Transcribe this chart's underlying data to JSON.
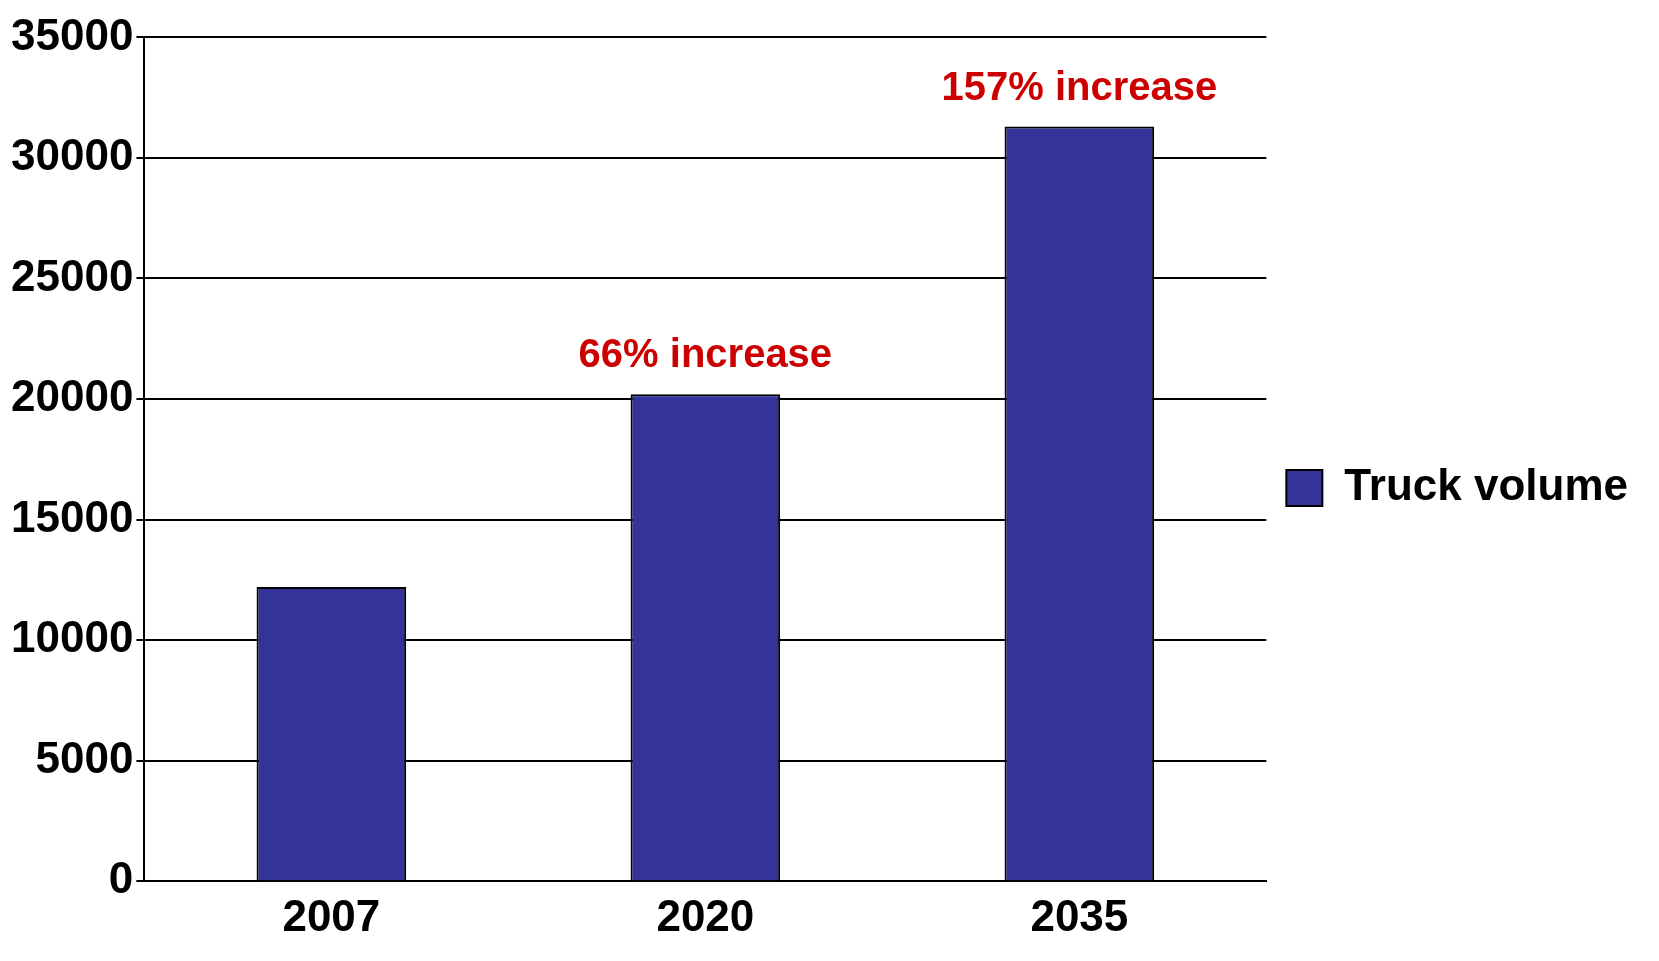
{
  "chart_data": {
    "type": "bar",
    "categories": [
      "2007",
      "2020",
      "2035"
    ],
    "series": [
      {
        "name": "Truck volume",
        "color": "#333399",
        "values": [
          12200,
          20200,
          31300
        ]
      }
    ],
    "ylim": [
      0,
      35000
    ],
    "yticks": [
      0,
      5000,
      10000,
      15000,
      20000,
      25000,
      30000,
      35000
    ],
    "grid": "y",
    "legend": "right",
    "annotations": [
      {
        "text": "66% increase",
        "x": "2020",
        "y": 20200
      },
      {
        "text": "157% increase",
        "x": "2035",
        "y": 31300
      }
    ]
  }
}
